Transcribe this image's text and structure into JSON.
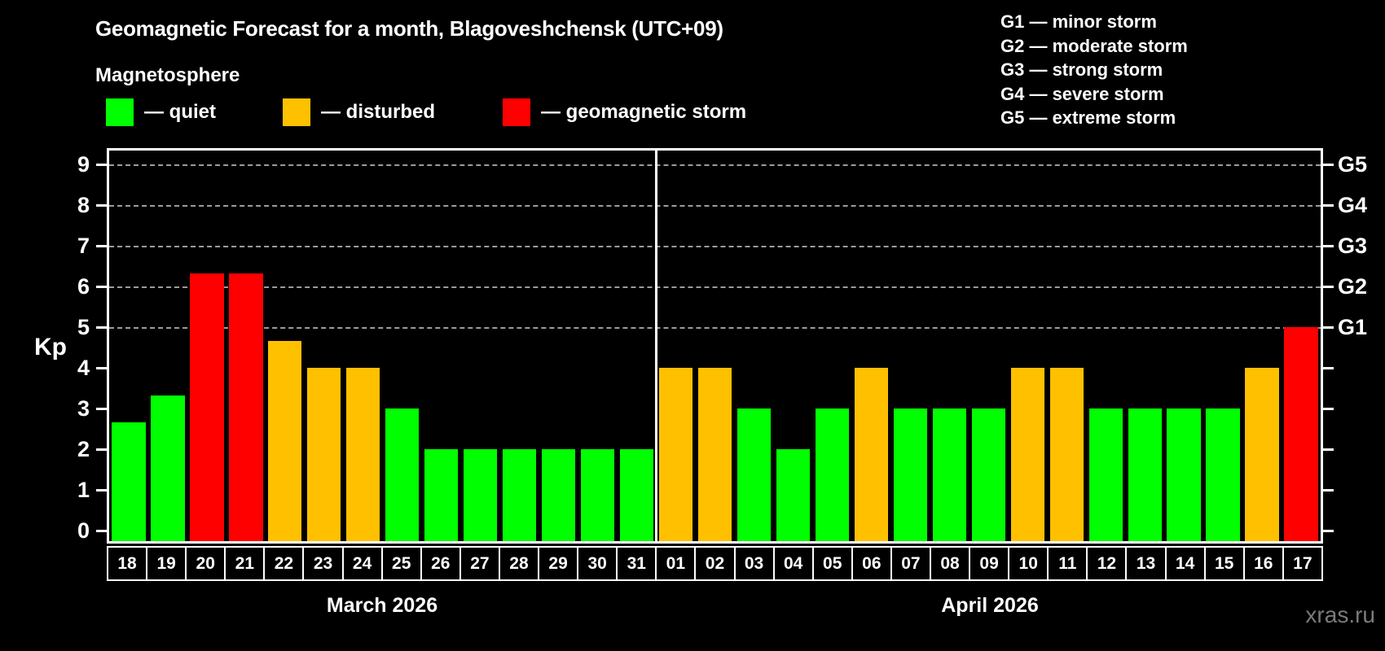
{
  "title": "Geomagnetic Forecast for a month, Blagoveshchensk (UTC+09)",
  "subtitle": "Magnetosphere",
  "legend": {
    "items": [
      {
        "key": "quiet",
        "label": "— quiet",
        "color": "#00ff00"
      },
      {
        "key": "disturbed",
        "label": "— disturbed",
        "color": "#ffc000"
      },
      {
        "key": "storm",
        "label": "— geomagnetic storm",
        "color": "#ff0000"
      }
    ]
  },
  "g_legend": [
    "G1 — minor storm",
    "G2 — moderate storm",
    "G3 — strong storm",
    "G4 — severe storm",
    "G5 — extreme storm"
  ],
  "y_axis": {
    "label": "Kp",
    "ticks": [
      0,
      1,
      2,
      3,
      4,
      5,
      6,
      7,
      8,
      9
    ]
  },
  "right_axis": {
    "labels": [
      {
        "kp": 5,
        "text": "G1"
      },
      {
        "kp": 6,
        "text": "G2"
      },
      {
        "kp": 7,
        "text": "G3"
      },
      {
        "kp": 8,
        "text": "G4"
      },
      {
        "kp": 9,
        "text": "G5"
      }
    ]
  },
  "watermark": "xras.ru",
  "chart_data": {
    "type": "bar",
    "title": "Geomagnetic Forecast for a month, Blagoveshchensk (UTC+09)",
    "xlabel": "",
    "ylabel": "Kp",
    "ylim": [
      0,
      9.4
    ],
    "grid": "dashed horizontal at Kp 5-9",
    "gridlines_at_kp": [
      5,
      6,
      7,
      8,
      9
    ],
    "legend_position": "top",
    "status_colors": {
      "quiet": "#00ff00",
      "disturbed": "#ffc000",
      "storm": "#ff0000"
    },
    "groups": [
      {
        "month": "March 2026",
        "days": [
          "18",
          "19",
          "20",
          "21",
          "22",
          "23",
          "24",
          "25",
          "26",
          "27",
          "28",
          "29",
          "30",
          "31"
        ],
        "values": [
          2.67,
          3.33,
          6.33,
          6.33,
          4.67,
          4,
          4,
          3,
          2,
          2,
          2,
          2,
          2,
          2
        ],
        "status": [
          "quiet",
          "quiet",
          "storm",
          "storm",
          "disturbed",
          "disturbed",
          "disturbed",
          "quiet",
          "quiet",
          "quiet",
          "quiet",
          "quiet",
          "quiet",
          "quiet"
        ]
      },
      {
        "month": "April 2026",
        "days": [
          "01",
          "02",
          "03",
          "04",
          "05",
          "06",
          "07",
          "08",
          "09",
          "10",
          "11",
          "12",
          "13",
          "14",
          "15",
          "16",
          "17"
        ],
        "values": [
          4,
          4,
          3,
          2,
          3,
          4,
          3,
          3,
          3,
          4,
          4,
          3,
          3,
          3,
          3,
          4,
          5
        ],
        "status": [
          "disturbed",
          "disturbed",
          "quiet",
          "quiet",
          "quiet",
          "disturbed",
          "quiet",
          "quiet",
          "quiet",
          "disturbed",
          "disturbed",
          "quiet",
          "quiet",
          "quiet",
          "quiet",
          "disturbed",
          "storm"
        ]
      }
    ]
  }
}
